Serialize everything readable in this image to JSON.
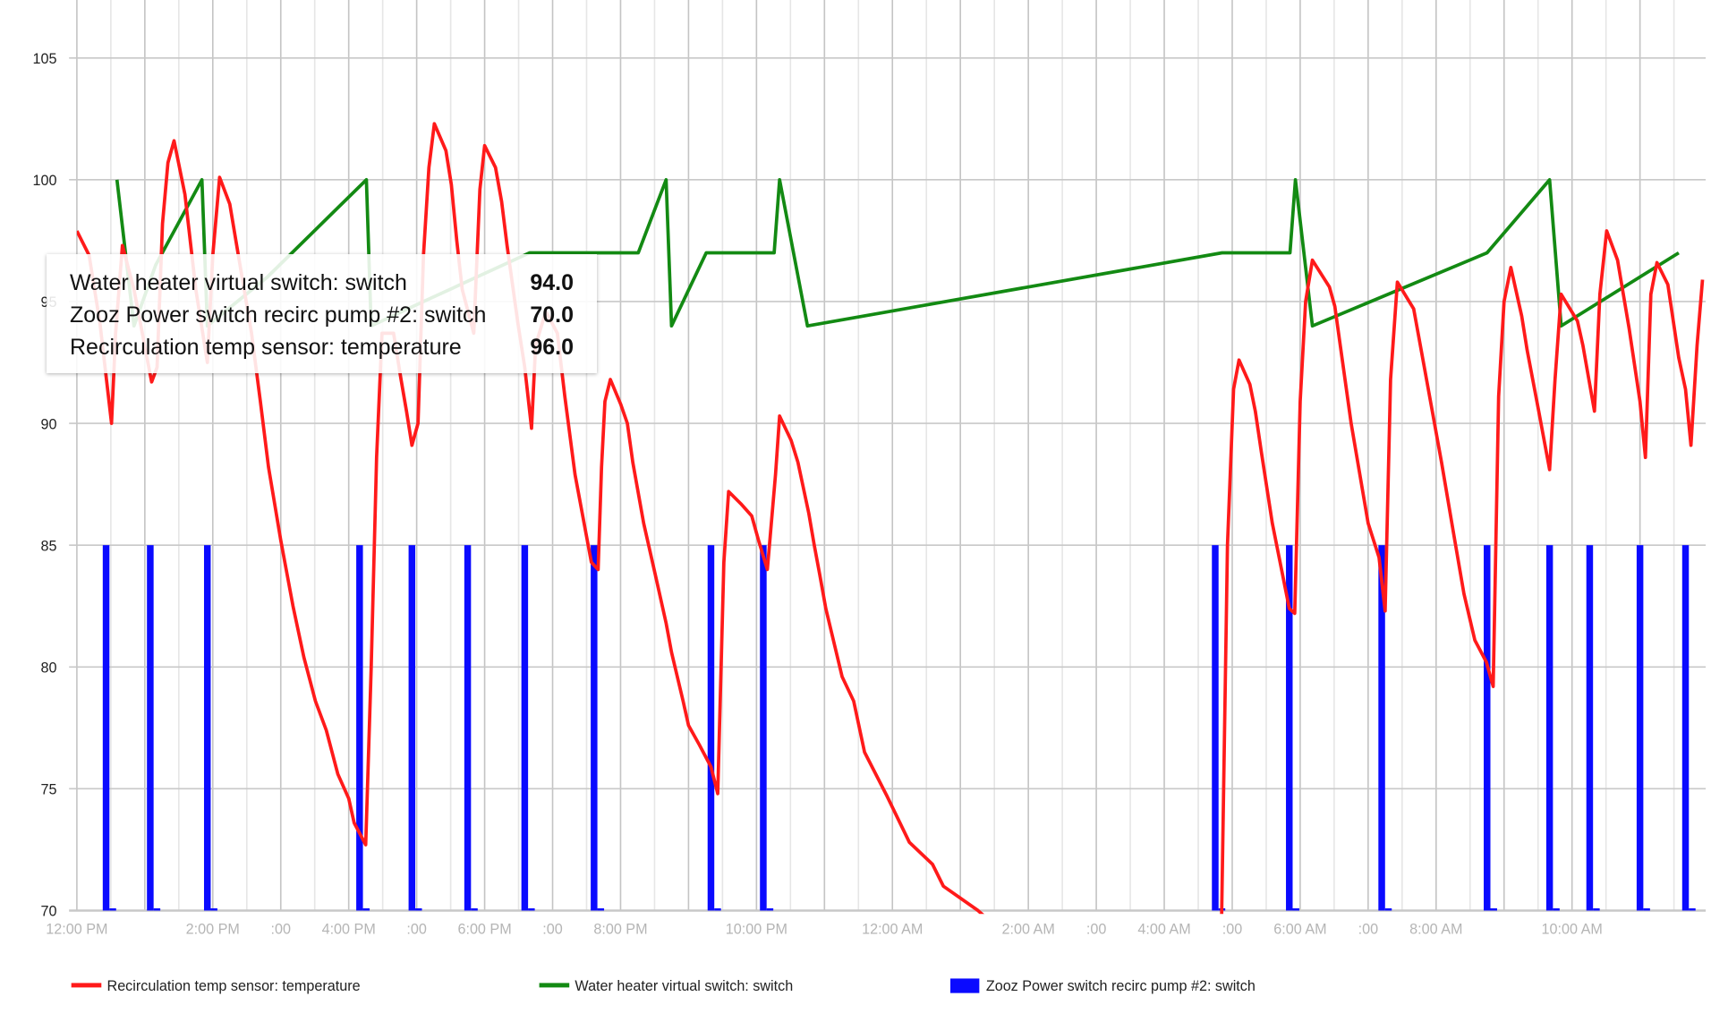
{
  "chart_data": {
    "type": "line",
    "title": "",
    "xlabel": "",
    "ylabel": "",
    "x_unit": "hours since 12:00 PM",
    "xlim": [
      0,
      23.95
    ],
    "ylim": [
      70,
      107
    ],
    "y_ticks": [
      70,
      75,
      80,
      85,
      90,
      95,
      100,
      105
    ],
    "x_ticks": [
      {
        "x": 0,
        "label": "12:00 PM"
      },
      {
        "x": 2,
        "label": "2:00 PM"
      },
      {
        "x": 3,
        "label": ":00"
      },
      {
        "x": 4,
        "label": "4:00 PM"
      },
      {
        "x": 5,
        "label": ":00"
      },
      {
        "x": 6,
        "label": "6:00 PM"
      },
      {
        "x": 7,
        "label": ":00"
      },
      {
        "x": 8,
        "label": "8:00 PM"
      },
      {
        "x": 10,
        "label": "10:00 PM"
      },
      {
        "x": 12,
        "label": "12:00 AM"
      },
      {
        "x": 14,
        "label": "2:00 AM"
      },
      {
        "x": 15,
        "label": ":00"
      },
      {
        "x": 16,
        "label": "4:00 AM"
      },
      {
        "x": 17,
        "label": ":00"
      },
      {
        "x": 18,
        "label": "6:00 AM"
      },
      {
        "x": 19,
        "label": ":00"
      },
      {
        "x": 20,
        "label": "8:00 AM"
      },
      {
        "x": 22,
        "label": "10:00 AM"
      }
    ],
    "grid": true,
    "legend_position": "bottom",
    "series": [
      {
        "name": "Recirculation temp sensor: temperature",
        "color": "#ff1a1a",
        "type": "line",
        "points": [
          [
            0,
            97.9
          ],
          [
            0.18,
            96.9
          ],
          [
            0.34,
            94.1
          ],
          [
            0.51,
            90.0
          ],
          [
            0.57,
            93.7
          ],
          [
            0.67,
            97.3
          ],
          [
            0.84,
            95.5
          ],
          [
            1.1,
            91.7
          ],
          [
            1.18,
            92.3
          ],
          [
            1.26,
            98.2
          ],
          [
            1.34,
            100.7
          ],
          [
            1.43,
            101.6
          ],
          [
            1.59,
            99.4
          ],
          [
            1.75,
            95.5
          ],
          [
            1.92,
            92.5
          ],
          [
            2.0,
            96.9
          ],
          [
            2.1,
            100.1
          ],
          [
            2.25,
            99.0
          ],
          [
            2.34,
            97.5
          ],
          [
            2.57,
            93.7
          ],
          [
            2.7,
            90.9
          ],
          [
            2.82,
            88.2
          ],
          [
            3.0,
            85.2
          ],
          [
            3.18,
            82.5
          ],
          [
            3.34,
            80.4
          ],
          [
            3.51,
            78.6
          ],
          [
            3.67,
            77.4
          ],
          [
            3.84,
            75.6
          ],
          [
            4.0,
            74.6
          ],
          [
            4.08,
            73.6
          ],
          [
            4.25,
            72.7
          ],
          [
            4.33,
            79.9
          ],
          [
            4.41,
            88.6
          ],
          [
            4.49,
            93.7
          ],
          [
            4.66,
            93.7
          ],
          [
            4.77,
            91.8
          ],
          [
            4.85,
            90.5
          ],
          [
            4.93,
            89.1
          ],
          [
            5.02,
            90.0
          ],
          [
            5.1,
            96.9
          ],
          [
            5.18,
            100.5
          ],
          [
            5.26,
            102.3
          ],
          [
            5.43,
            101.2
          ],
          [
            5.51,
            99.8
          ],
          [
            5.59,
            97.5
          ],
          [
            5.67,
            95.5
          ],
          [
            5.84,
            93.7
          ],
          [
            5.93,
            99.6
          ],
          [
            6.0,
            101.4
          ],
          [
            6.16,
            100.5
          ],
          [
            6.25,
            99.1
          ],
          [
            6.33,
            97.3
          ],
          [
            6.49,
            94.1
          ],
          [
            6.59,
            92.3
          ],
          [
            6.69,
            89.8
          ],
          [
            6.75,
            93.2
          ],
          [
            6.9,
            94.6
          ],
          [
            7.07,
            93.7
          ],
          [
            7.18,
            91.1
          ],
          [
            7.33,
            87.9
          ],
          [
            7.49,
            85.5
          ],
          [
            7.57,
            84.3
          ],
          [
            7.67,
            84.0
          ],
          [
            7.72,
            88.2
          ],
          [
            7.77,
            90.9
          ],
          [
            7.85,
            91.8
          ],
          [
            8.0,
            90.8
          ],
          [
            8.1,
            90.0
          ],
          [
            8.18,
            88.4
          ],
          [
            8.34,
            85.9
          ],
          [
            8.51,
            83.8
          ],
          [
            8.67,
            81.8
          ],
          [
            8.75,
            80.6
          ],
          [
            8.92,
            78.6
          ],
          [
            9.0,
            77.6
          ],
          [
            9.16,
            76.8
          ],
          [
            9.33,
            75.9
          ],
          [
            9.43,
            74.8
          ],
          [
            9.52,
            84.3
          ],
          [
            9.59,
            87.2
          ],
          [
            9.77,
            86.7
          ],
          [
            9.93,
            86.2
          ],
          [
            10.03,
            85.2
          ],
          [
            10.16,
            84.0
          ],
          [
            10.28,
            87.9
          ],
          [
            10.34,
            90.3
          ],
          [
            10.51,
            89.3
          ],
          [
            10.61,
            88.4
          ],
          [
            10.77,
            86.3
          ],
          [
            10.85,
            85.0
          ],
          [
            10.93,
            83.8
          ],
          [
            11.02,
            82.4
          ],
          [
            11.26,
            79.6
          ],
          [
            11.43,
            78.6
          ],
          [
            11.59,
            76.5
          ],
          [
            11.92,
            74.7
          ],
          [
            12.25,
            72.8
          ],
          [
            12.59,
            71.9
          ],
          [
            12.75,
            71.0
          ],
          [
            13.26,
            70.0
          ],
          [
            13.5,
            69.4
          ],
          [
            16.84,
            69.0
          ],
          [
            16.93,
            85.0
          ],
          [
            17.02,
            91.4
          ],
          [
            17.1,
            92.6
          ],
          [
            17.26,
            91.6
          ],
          [
            17.34,
            90.5
          ],
          [
            17.43,
            88.8
          ],
          [
            17.59,
            85.9
          ],
          [
            17.84,
            82.4
          ],
          [
            17.92,
            82.2
          ],
          [
            18.0,
            90.9
          ],
          [
            18.08,
            95.0
          ],
          [
            18.18,
            96.7
          ],
          [
            18.43,
            95.6
          ],
          [
            18.51,
            94.8
          ],
          [
            18.59,
            93.2
          ],
          [
            18.75,
            90.0
          ],
          [
            19.0,
            85.9
          ],
          [
            19.16,
            84.5
          ],
          [
            19.25,
            82.3
          ],
          [
            19.33,
            91.8
          ],
          [
            19.43,
            95.8
          ],
          [
            19.67,
            94.7
          ],
          [
            19.84,
            92.1
          ],
          [
            20.08,
            88.4
          ],
          [
            20.25,
            85.6
          ],
          [
            20.41,
            83.0
          ],
          [
            20.57,
            81.1
          ],
          [
            20.74,
            80.2
          ],
          [
            20.84,
            79.2
          ],
          [
            20.92,
            91.1
          ],
          [
            21.0,
            95.0
          ],
          [
            21.1,
            96.4
          ],
          [
            21.26,
            94.4
          ],
          [
            21.34,
            93.0
          ],
          [
            21.51,
            90.5
          ],
          [
            21.67,
            88.1
          ],
          [
            21.75,
            91.8
          ],
          [
            21.84,
            95.3
          ],
          [
            22.08,
            94.2
          ],
          [
            22.16,
            93.2
          ],
          [
            22.33,
            90.5
          ],
          [
            22.41,
            95.3
          ],
          [
            22.51,
            97.9
          ],
          [
            22.67,
            96.7
          ],
          [
            22.84,
            93.9
          ],
          [
            23.0,
            90.9
          ],
          [
            23.08,
            88.6
          ],
          [
            23.16,
            95.3
          ],
          [
            23.25,
            96.6
          ],
          [
            23.41,
            95.7
          ],
          [
            23.57,
            92.7
          ],
          [
            23.67,
            91.4
          ],
          [
            23.75,
            89.1
          ],
          [
            23.84,
            93.2
          ],
          [
            23.92,
            95.9
          ]
        ]
      },
      {
        "name": "Water heater virtual switch: switch",
        "color": "#138a13",
        "type": "line",
        "points": [
          [
            0.59,
            100
          ],
          [
            0.84,
            94
          ],
          [
            1.16,
            96.5
          ],
          [
            1.84,
            100
          ],
          [
            1.92,
            94
          ],
          [
            2.8,
            96
          ],
          [
            4.26,
            100
          ],
          [
            4.33,
            94
          ],
          [
            5.1,
            95
          ],
          [
            6.66,
            97
          ],
          [
            8.26,
            97
          ],
          [
            8.67,
            100
          ],
          [
            8.75,
            94
          ],
          [
            9.26,
            97
          ],
          [
            10.26,
            97
          ],
          [
            10.34,
            100
          ],
          [
            10.75,
            94
          ],
          [
            16.85,
            97
          ],
          [
            17.85,
            97
          ],
          [
            17.93,
            100
          ],
          [
            18.18,
            94
          ],
          [
            20.75,
            97
          ],
          [
            21.67,
            100
          ],
          [
            21.84,
            94
          ],
          [
            23.57,
            97
          ]
        ]
      },
      {
        "name": "Zooz Power switch recirc pump #2: switch",
        "color": "#0a0aff",
        "type": "step",
        "base": 70,
        "on_value": 85,
        "pulses": [
          0.43,
          1.08,
          1.92,
          4.16,
          4.93,
          5.75,
          6.59,
          7.61,
          9.33,
          10.1,
          16.75,
          17.84,
          19.2,
          20.75,
          21.67,
          22.26,
          23.0,
          23.67
        ]
      }
    ]
  },
  "tooltip": {
    "rows": [
      {
        "label": "Water heater virtual switch: switch",
        "value": "94.0"
      },
      {
        "label": "Zooz Power switch recirc pump #2: switch",
        "value": "70.0"
      },
      {
        "label": "Recirculation temp sensor: temperature",
        "value": "96.0"
      }
    ]
  },
  "legend": [
    {
      "label": "Recirculation temp sensor: temperature",
      "color": "#ff1a1a"
    },
    {
      "label": "Water heater virtual switch: switch",
      "color": "#138a13"
    },
    {
      "label": "Zooz Power switch recirc pump #2: switch",
      "color": "#0a0aff"
    }
  ]
}
